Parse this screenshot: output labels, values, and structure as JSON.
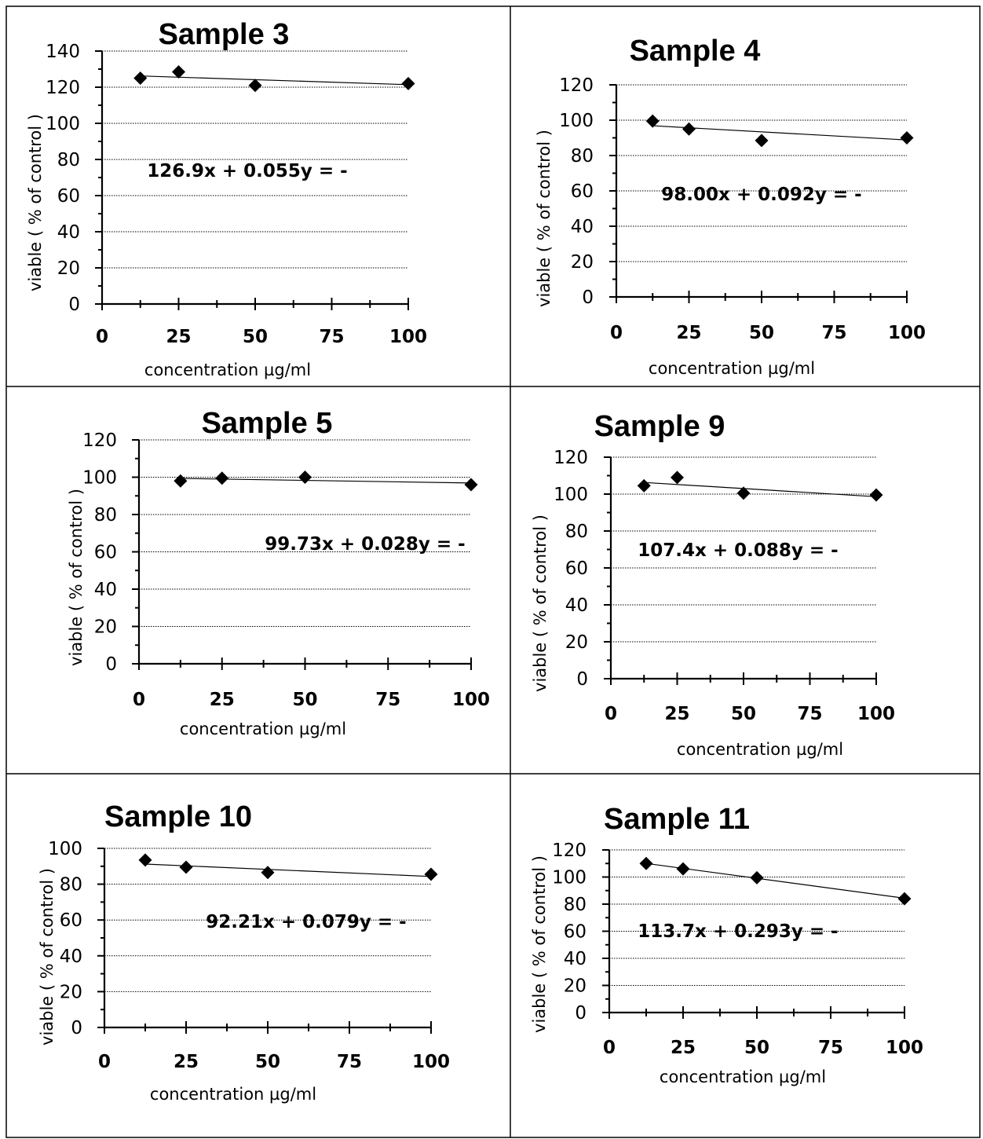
{
  "chart_data": [
    {
      "type": "scatter",
      "title": "Sample 3",
      "xlabel": "concentration µg/ml",
      "ylabel": "viable ( % of control )",
      "x_ticks": [
        "0",
        "25",
        "50",
        "75",
        "100"
      ],
      "y_ticks": [
        "0",
        "20",
        "40",
        "60",
        "80",
        "100",
        "120",
        "140"
      ],
      "xlim": [
        0,
        100
      ],
      "ylim": [
        0,
        140
      ],
      "grid": "horizontal",
      "equation": "126.9x + 0.055y = -",
      "trendline": [
        126.9,
        121.4
      ],
      "points": [
        {
          "x": 12.5,
          "y": 125
        },
        {
          "x": 25,
          "y": 128.5
        },
        {
          "x": 50,
          "y": 121
        },
        {
          "x": 100,
          "y": 122
        }
      ]
    },
    {
      "type": "scatter",
      "title": "Sample 4",
      "xlabel": "concentration µg/ml",
      "ylabel": "viable ( % of control )",
      "x_ticks": [
        "0",
        "25",
        "50",
        "75",
        "100"
      ],
      "y_ticks": [
        "0",
        "20",
        "40",
        "60",
        "80",
        "100",
        "120"
      ],
      "xlim": [
        0,
        100
      ],
      "ylim": [
        0,
        120
      ],
      "grid": "horizontal",
      "equation": "98.00x + 0.092y = -",
      "trendline": [
        98.0,
        88.8
      ],
      "points": [
        {
          "x": 12.5,
          "y": 99.5
        },
        {
          "x": 25,
          "y": 95
        },
        {
          "x": 50,
          "y": 88.5
        },
        {
          "x": 100,
          "y": 90
        }
      ]
    },
    {
      "type": "scatter",
      "title": "Sample 5",
      "xlabel": "concentration µg/ml",
      "ylabel": "viable ( % of control )",
      "x_ticks": [
        "0",
        "25",
        "50",
        "75",
        "100"
      ],
      "y_ticks": [
        "0",
        "20",
        "40",
        "60",
        "80",
        "100",
        "120"
      ],
      "xlim": [
        0,
        100
      ],
      "ylim": [
        0,
        120
      ],
      "grid": "horizontal",
      "equation": "99.73x + 0.028y = -",
      "trendline": [
        99.7,
        96.9
      ],
      "points": [
        {
          "x": 12.5,
          "y": 98
        },
        {
          "x": 25,
          "y": 99.5
        },
        {
          "x": 50,
          "y": 100
        },
        {
          "x": 100,
          "y": 96
        }
      ]
    },
    {
      "type": "scatter",
      "title": "Sample 9",
      "xlabel": "concentration µg/ml",
      "ylabel": "viable ( % of control )",
      "x_ticks": [
        "0",
        "25",
        "50",
        "75",
        "100"
      ],
      "y_ticks": [
        "0",
        "20",
        "40",
        "60",
        "80",
        "100",
        "120"
      ],
      "xlim": [
        0,
        100
      ],
      "ylim": [
        0,
        120
      ],
      "grid": "horizontal",
      "equation": "107.4x + 0.088y = -",
      "trendline": [
        107.4,
        98.6
      ],
      "points": [
        {
          "x": 12.5,
          "y": 104.5
        },
        {
          "x": 25,
          "y": 109
        },
        {
          "x": 50,
          "y": 100.5
        },
        {
          "x": 100,
          "y": 99.5
        }
      ]
    },
    {
      "type": "scatter",
      "title": "Sample 10",
      "xlabel": "concentration µg/ml",
      "ylabel": "viable ( % of control )",
      "x_ticks": [
        "0",
        "25",
        "50",
        "75",
        "100"
      ],
      "y_ticks": [
        "0",
        "20",
        "40",
        "60",
        "80",
        "100"
      ],
      "xlim": [
        0,
        100
      ],
      "ylim": [
        0,
        100
      ],
      "grid": "horizontal",
      "equation": "92.21x + 0.079y = -",
      "trendline": [
        92.2,
        84.3
      ],
      "points": [
        {
          "x": 12.5,
          "y": 93.5
        },
        {
          "x": 25,
          "y": 89.5
        },
        {
          "x": 50,
          "y": 86.5
        },
        {
          "x": 100,
          "y": 85.5
        }
      ]
    },
    {
      "type": "scatter",
      "title": "Sample 11",
      "xlabel": "concentration µg/ml",
      "ylabel": "viable ( % of control )",
      "x_ticks": [
        "0",
        "25",
        "50",
        "75",
        "100"
      ],
      "y_ticks": [
        "0",
        "20",
        "40",
        "60",
        "80",
        "100",
        "120"
      ],
      "xlim": [
        0,
        100
      ],
      "ylim": [
        0,
        120
      ],
      "grid": "horizontal",
      "equation": "113.7x + 0.293y = -",
      "trendline": [
        113.7,
        84.4
      ],
      "points": [
        {
          "x": 12.5,
          "y": 110
        },
        {
          "x": 25,
          "y": 106
        },
        {
          "x": 50,
          "y": 99.5
        },
        {
          "x": 100,
          "y": 84
        }
      ]
    }
  ]
}
